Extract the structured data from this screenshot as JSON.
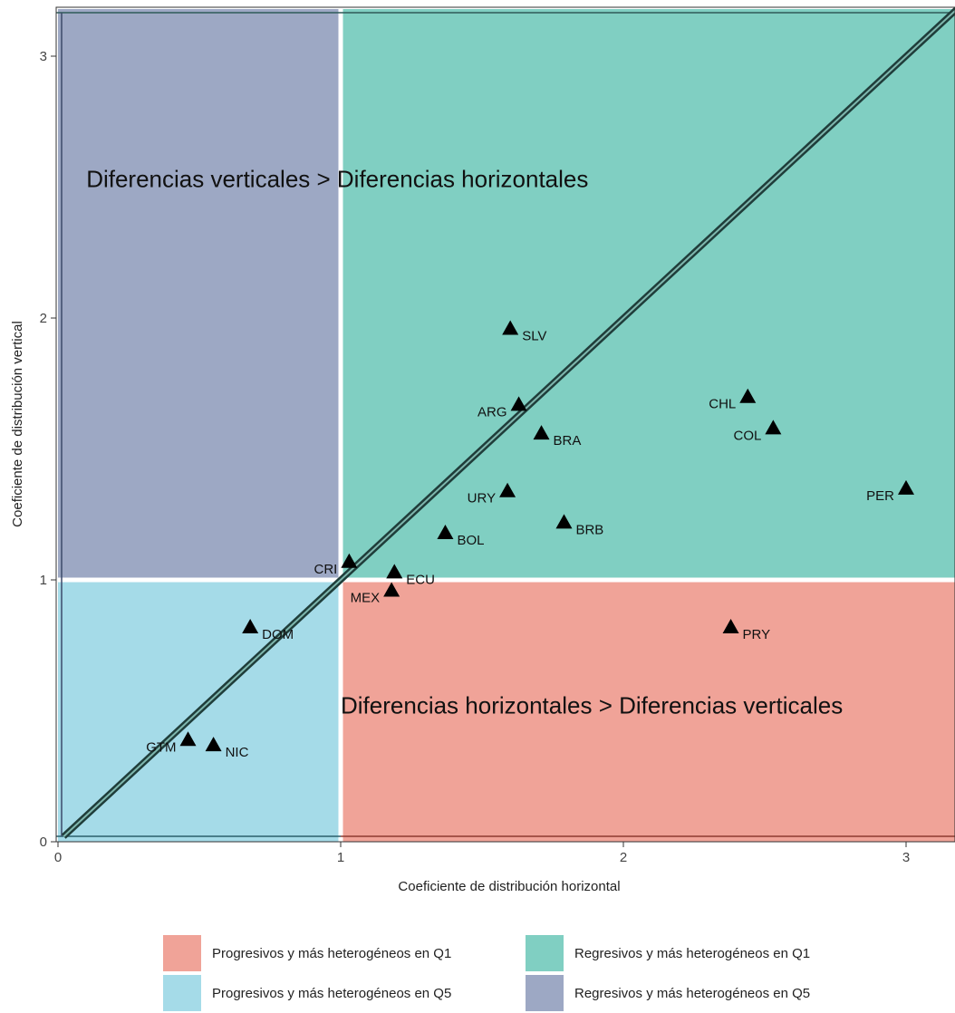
{
  "chart_data": {
    "type": "scatter",
    "xlabel": "Coeficiente de distribución horizontal",
    "ylabel": "Coeficiente de distribución vertical",
    "xlim": [
      0,
      3.18
    ],
    "ylim": [
      0,
      3.18
    ],
    "x_ticks": [
      "0",
      "1",
      "2",
      "3"
    ],
    "y_ticks": [
      "0",
      "1",
      "2",
      "3"
    ],
    "grid": false,
    "reference_lines": {
      "vertical_x": 1,
      "horizontal_y": 1,
      "diagonal": "y = x"
    },
    "regions": [
      {
        "key": "progresivos_q1",
        "label": "Progresivos y más heterogéneos en Q1",
        "color": "#F0A398",
        "x_range": [
          1,
          3.18
        ],
        "y_range": [
          0,
          1
        ]
      },
      {
        "key": "regresivos_q1",
        "label": "Regresivos y más heterogéneos en Q1",
        "color": "#80CFC2",
        "x_range": [
          1,
          3.18
        ],
        "y_range": [
          1,
          3.18
        ]
      },
      {
        "key": "progresivos_q5",
        "label": "Progresivos y más heterogéneos en Q5",
        "color": "#A5DBE8",
        "x_range": [
          0,
          1
        ],
        "y_range": [
          0,
          1
        ]
      },
      {
        "key": "regresivos_q5",
        "label": "Regresivos y más heterogéneos en Q5",
        "color": "#9DA8C4",
        "x_range": [
          0,
          1
        ],
        "y_range": [
          1,
          3.18
        ]
      }
    ],
    "annotations": [
      {
        "text": "Diferencias verticales > Diferencias horizontales",
        "x": 0.1,
        "y": 2.5
      },
      {
        "text": "Diferencias horizontales > Diferencias verticales",
        "x": 1.0,
        "y": 0.49
      }
    ],
    "points": [
      {
        "label": "SLV",
        "x": 1.6,
        "y": 1.96,
        "label_side": "right"
      },
      {
        "label": "ARG",
        "x": 1.63,
        "y": 1.67,
        "label_side": "left"
      },
      {
        "label": "BRA",
        "x": 1.71,
        "y": 1.56,
        "label_side": "right"
      },
      {
        "label": "URY",
        "x": 1.59,
        "y": 1.34,
        "label_side": "left"
      },
      {
        "label": "BOL",
        "x": 1.37,
        "y": 1.18,
        "label_side": "right"
      },
      {
        "label": "BRB",
        "x": 1.79,
        "y": 1.22,
        "label_side": "right"
      },
      {
        "label": "CRI",
        "x": 1.03,
        "y": 1.07,
        "label_side": "left"
      },
      {
        "label": "ECU",
        "x": 1.19,
        "y": 1.03,
        "label_side": "right"
      },
      {
        "label": "MEX",
        "x": 1.18,
        "y": 0.96,
        "label_side": "left"
      },
      {
        "label": "CHL",
        "x": 2.44,
        "y": 1.7,
        "label_side": "left"
      },
      {
        "label": "COL",
        "x": 2.53,
        "y": 1.58,
        "label_side": "left"
      },
      {
        "label": "PER",
        "x": 3.0,
        "y": 1.35,
        "label_side": "left"
      },
      {
        "label": "PRY",
        "x": 2.38,
        "y": 0.82,
        "label_side": "right"
      },
      {
        "label": "DOM",
        "x": 0.68,
        "y": 0.82,
        "label_side": "right"
      },
      {
        "label": "GTM",
        "x": 0.46,
        "y": 0.39,
        "label_side": "left"
      },
      {
        "label": "NIC",
        "x": 0.55,
        "y": 0.37,
        "label_side": "right"
      }
    ]
  },
  "legend": [
    [
      {
        "label": "Progresivos y más heterogéneos en Q1",
        "color": "#F0A398"
      },
      {
        "label": "Regresivos y más heterogéneos en Q1",
        "color": "#80CFC2"
      }
    ],
    [
      {
        "label": "Progresivos y más heterogéneos en Q5",
        "color": "#A5DBE8"
      },
      {
        "label": "Regresivos y más heterogéneos en Q5",
        "color": "#9DA8C4"
      }
    ]
  ]
}
